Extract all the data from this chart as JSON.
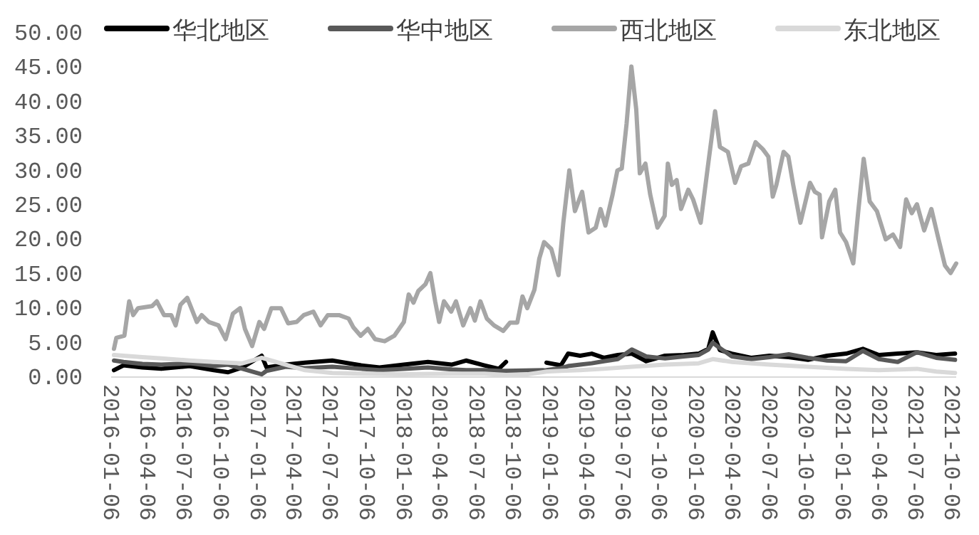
{
  "chart_data": {
    "type": "line",
    "xlim": [
      "2016-01-06",
      "2021-10-16"
    ],
    "ylim": [
      0,
      50
    ],
    "xticks": [
      "2016-01-06",
      "2016-04-06",
      "2016-07-06",
      "2016-10-06",
      "2017-01-06",
      "2017-04-06",
      "2017-07-06",
      "2017-10-06",
      "2018-01-06",
      "2018-04-06",
      "2018-07-06",
      "2018-10-06",
      "2019-01-06",
      "2019-04-06",
      "2019-07-06",
      "2019-10-06",
      "2020-01-06",
      "2020-04-06",
      "2020-07-06",
      "2020-10-06",
      "2021-01-06",
      "2021-04-06",
      "2021-07-06",
      "2021-10-06"
    ],
    "yticks": [
      {
        "value": 0,
        "label": "0.00"
      },
      {
        "value": 5,
        "label": "5.00"
      },
      {
        "value": 10,
        "label": "10.00"
      },
      {
        "value": 15,
        "label": "15.00"
      },
      {
        "value": 20,
        "label": "20.00"
      },
      {
        "value": 25,
        "label": "25.00"
      },
      {
        "value": 30,
        "label": "30.00"
      },
      {
        "value": 35,
        "label": "35.00"
      },
      {
        "value": 40,
        "label": "40.00"
      },
      {
        "value": 45,
        "label": "45.00"
      },
      {
        "value": 50,
        "label": "50.00"
      }
    ],
    "legend": "top",
    "line_style": "solid",
    "series": [
      {
        "name": "华北地区",
        "color": "#000000",
        "x": [
          "2016-01-13",
          "2016-02-06",
          "2016-03-24",
          "2016-05-10",
          "2016-07-20",
          "2016-09-18",
          "2016-10-24",
          "2016-11-29",
          "2017-01-16",
          "2017-01-28",
          "2017-03-17",
          "2017-05-04",
          "2017-07-11",
          "2017-09-21",
          "2017-11-06",
          "2018-01-06",
          "2018-03-07",
          "2018-05-05",
          "2018-06-10",
          "2018-07-26",
          "2018-08-31",
          "2018-09-18",
          "2018-11-10",
          "2018-12-28",
          "2019-02-02",
          "2019-02-20",
          "2019-03-22",
          "2019-04-20",
          "2019-05-20",
          "2019-06-24",
          "2019-07-29",
          "2019-09-03",
          "2019-10-20",
          "2019-12-06",
          "2020-01-12",
          "2020-02-05",
          "2020-02-16",
          "2020-03-05",
          "2020-04-04",
          "2020-05-22",
          "2020-07-07",
          "2020-08-24",
          "2020-10-11",
          "2020-11-28",
          "2021-01-14",
          "2021-02-25",
          "2021-04-06",
          "2021-05-23",
          "2021-07-10",
          "2021-08-27",
          "2021-10-13"
        ],
        "values": [
          1.0,
          1.7,
          1.4,
          1.2,
          1.6,
          1.0,
          0.7,
          1.4,
          3.1,
          1.4,
          1.8,
          2.1,
          2.4,
          1.7,
          1.4,
          1.8,
          2.2,
          1.8,
          2.4,
          1.7,
          1.2,
          2.2,
          null,
          2.1,
          1.7,
          3.4,
          3.1,
          3.4,
          2.8,
          3.2,
          3.4,
          2.3,
          3.1,
          3.2,
          3.4,
          4.1,
          6.5,
          3.9,
          3.4,
          2.8,
          3.1,
          2.9,
          2.5,
          3.1,
          3.4,
          4.1,
          3.2,
          3.4,
          3.6,
          3.2,
          3.4
        ]
      },
      {
        "name": "华中地区",
        "color": "#595959",
        "x": [
          "2016-01-13",
          "2016-02-06",
          "2016-03-24",
          "2016-05-10",
          "2016-07-20",
          "2016-09-18",
          "2016-10-24",
          "2016-11-29",
          "2017-01-16",
          "2017-01-28",
          "2017-03-17",
          "2017-05-04",
          "2017-07-11",
          "2017-09-21",
          "2017-11-06",
          "2018-01-06",
          "2018-03-07",
          "2018-05-05",
          "2018-06-10",
          "2018-07-26",
          "2018-08-31",
          "2018-09-18",
          "2018-12-28",
          "2019-02-02",
          "2019-02-20",
          "2019-03-22",
          "2019-04-20",
          "2019-05-20",
          "2019-06-24",
          "2019-07-29",
          "2019-09-03",
          "2019-10-20",
          "2019-12-06",
          "2020-01-12",
          "2020-02-05",
          "2020-02-16",
          "2020-03-05",
          "2020-04-04",
          "2020-05-22",
          "2020-07-07",
          "2020-08-24",
          "2020-10-11",
          "2020-11-28",
          "2021-01-14",
          "2021-02-25",
          "2021-04-06",
          "2021-05-23",
          "2021-07-10",
          "2021-08-27",
          "2021-10-13"
        ],
        "values": [
          2.4,
          2.2,
          1.9,
          1.8,
          2.0,
          1.6,
          1.8,
          1.2,
          0.4,
          0.9,
          1.5,
          1.3,
          1.5,
          1.2,
          1.0,
          1.2,
          1.4,
          1.1,
          1.0,
          1.0,
          0.9,
          0.9,
          1.0,
          1.3,
          1.6,
          1.8,
          2.0,
          2.3,
          2.6,
          4.0,
          3.0,
          2.7,
          3.0,
          3.2,
          4.0,
          5.0,
          4.2,
          3.0,
          2.6,
          2.9,
          3.3,
          2.8,
          2.4,
          2.3,
          3.8,
          2.6,
          2.2,
          3.6,
          2.8,
          2.5
        ]
      },
      {
        "name": "西北地区",
        "color": "#a6a6a6",
        "x": [
          "2016-01-13",
          "2016-01-19",
          "2016-02-08",
          "2016-02-20",
          "2016-03-01",
          "2016-03-13",
          "2016-04-17",
          "2016-04-29",
          "2016-05-17",
          "2016-06-04",
          "2016-06-15",
          "2016-06-27",
          "2016-07-14",
          "2016-08-07",
          "2016-08-19",
          "2016-09-06",
          "2016-09-30",
          "2016-10-18",
          "2016-11-05",
          "2016-11-23",
          "2016-12-05",
          "2016-12-23",
          "2017-01-10",
          "2017-01-22",
          "2017-02-09",
          "2017-03-05",
          "2017-03-23",
          "2017-04-13",
          "2017-05-01",
          "2017-05-25",
          "2017-06-12",
          "2017-06-30",
          "2017-07-28",
          "2017-08-21",
          "2017-09-02",
          "2017-09-20",
          "2017-10-08",
          "2017-10-26",
          "2017-11-19",
          "2017-12-13",
          "2018-01-06",
          "2018-01-18",
          "2018-01-30",
          "2018-02-11",
          "2018-03-01",
          "2018-03-13",
          "2018-03-25",
          "2018-04-04",
          "2018-04-16",
          "2018-05-04",
          "2018-05-16",
          "2018-06-03",
          "2018-06-21",
          "2018-07-02",
          "2018-07-16",
          "2018-08-01",
          "2018-08-19",
          "2018-09-11",
          "2018-09-28",
          "2018-10-16",
          "2018-10-29",
          "2018-11-10",
          "2018-11-28",
          "2018-12-10",
          "2018-12-22",
          "2019-01-09",
          "2019-01-27",
          "2019-02-08",
          "2019-02-23",
          "2019-03-09",
          "2019-03-27",
          "2019-04-12",
          "2019-04-30",
          "2019-05-12",
          "2019-05-24",
          "2019-06-11",
          "2019-06-23",
          "2019-07-04",
          "2019-07-16",
          "2019-07-28",
          "2019-08-09",
          "2019-08-18",
          "2019-09-01",
          "2019-09-13",
          "2019-10-01",
          "2019-10-19",
          "2019-10-27",
          "2019-11-06",
          "2019-11-18",
          "2019-11-29",
          "2019-12-17",
          "2019-12-29",
          "2020-01-17",
          "2020-02-04",
          "2020-02-22",
          "2020-03-05",
          "2020-03-25",
          "2020-04-12",
          "2020-04-27",
          "2020-05-15",
          "2020-06-02",
          "2020-06-20",
          "2020-07-04",
          "2020-07-15",
          "2020-07-24",
          "2020-08-11",
          "2020-08-23",
          "2020-09-04",
          "2020-09-22",
          "2020-10-16",
          "2020-10-28",
          "2020-11-09",
          "2020-11-15",
          "2020-12-03",
          "2020-12-18",
          "2020-12-30",
          "2021-01-14",
          "2021-02-01",
          "2021-02-13",
          "2021-02-27",
          "2021-03-14",
          "2021-04-01",
          "2021-04-23",
          "2021-05-11",
          "2021-05-29",
          "2021-06-13",
          "2021-06-27",
          "2021-07-10",
          "2021-07-28",
          "2021-08-15",
          "2021-09-02",
          "2021-09-18",
          "2021-10-02",
          "2021-10-16"
        ],
        "values": [
          4.1,
          5.7,
          6.0,
          11.0,
          9.0,
          10.0,
          10.3,
          11.0,
          9.0,
          9.0,
          7.5,
          10.5,
          11.5,
          8.0,
          9.0,
          8.0,
          7.5,
          5.5,
          9.2,
          10.0,
          7.0,
          4.5,
          8.0,
          7.0,
          10.0,
          10.0,
          7.8,
          8.0,
          9.0,
          9.5,
          7.5,
          9.0,
          9.0,
          8.5,
          7.2,
          6.0,
          7.0,
          5.5,
          5.2,
          6.0,
          8.0,
          12.0,
          10.8,
          12.5,
          13.5,
          15.1,
          11.0,
          8.0,
          11.0,
          9.5,
          11.0,
          7.5,
          10.0,
          8.2,
          11.0,
          8.5,
          7.5,
          6.7,
          7.9,
          7.9,
          11.7,
          10.0,
          12.7,
          17.2,
          19.6,
          18.6,
          14.8,
          22.4,
          30.0,
          24.1,
          26.9,
          21.0,
          21.7,
          24.4,
          22.0,
          26.5,
          30.0,
          30.3,
          36.8,
          45.1,
          38.9,
          29.6,
          31.0,
          26.5,
          21.7,
          23.4,
          31.0,
          27.9,
          28.6,
          24.4,
          27.2,
          25.8,
          22.4,
          30.6,
          38.6,
          33.4,
          32.7,
          28.2,
          30.6,
          31.0,
          34.1,
          33.1,
          32.0,
          26.2,
          27.9,
          32.7,
          32.0,
          27.9,
          22.4,
          28.2,
          26.9,
          26.5,
          20.3,
          25.5,
          27.2,
          21.0,
          19.6,
          16.5,
          23.8,
          31.7,
          25.5,
          24.1,
          20.0,
          20.7,
          18.9,
          25.8,
          23.8,
          25.1,
          21.3,
          24.4,
          20.0,
          16.2,
          15.1,
          16.5
        ]
      },
      {
        "name": "东北地区",
        "color": "#d9d9d9",
        "x": [
          "2016-01-13",
          "2016-03-24",
          "2016-05-10",
          "2016-07-20",
          "2016-09-18",
          "2016-11-29",
          "2017-01-16",
          "2017-03-17",
          "2017-05-04",
          "2017-07-11",
          "2017-09-21",
          "2018-01-06",
          "2018-05-05",
          "2018-07-26",
          "2018-09-18",
          "2018-11-10",
          "2018-12-28",
          "2019-02-02",
          "2019-03-22",
          "2019-05-20",
          "2019-07-29",
          "2019-10-20",
          "2020-01-12",
          "2020-02-16",
          "2020-04-04",
          "2020-07-07",
          "2020-10-11",
          "2021-01-14",
          "2021-04-06",
          "2021-07-10",
          "2021-08-27",
          "2021-10-13"
        ],
        "values": [
          3.2,
          2.9,
          2.7,
          2.4,
          2.2,
          2.0,
          2.8,
          1.8,
          1.0,
          0.6,
          0.5,
          0.4,
          0.5,
          0.5,
          0.3,
          0.4,
          0.8,
          0.9,
          1.0,
          1.2,
          1.5,
          1.8,
          2.0,
          2.6,
          2.2,
          1.8,
          1.5,
          1.2,
          1.0,
          1.2,
          0.8,
          0.6
        ]
      }
    ]
  }
}
